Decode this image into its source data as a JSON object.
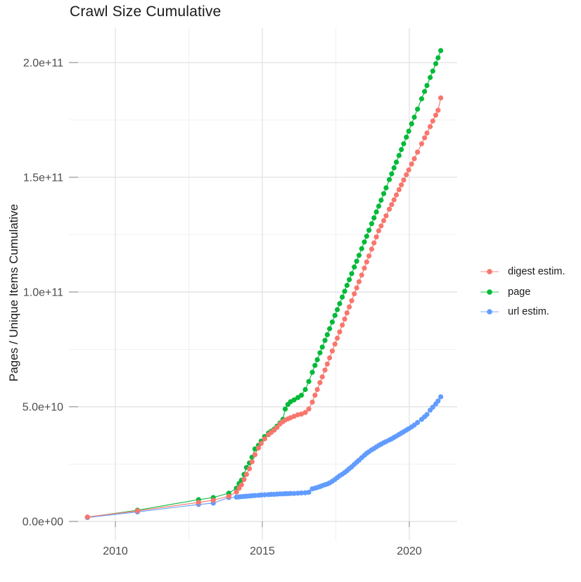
{
  "title": "Crawl Size Cumulative",
  "axes": {
    "y_label": "Pages / Unique Items Cumulative",
    "x_tick_labels": [
      "2010",
      "2015",
      "2020"
    ],
    "y_tick_labels": [
      "0.0e+00",
      "5.0e+10",
      "1.0e+11",
      "1.5e+11",
      "2.0e+11"
    ]
  },
  "legend": {
    "position": "right",
    "items": [
      {
        "label": "digest estim.",
        "color": "#F8766D"
      },
      {
        "label": "page",
        "color": "#00BA38"
      },
      {
        "label": "url estim.",
        "color": "#619CFF"
      }
    ]
  },
  "colors": {
    "digest": "#F8766D",
    "page": "#00BA38",
    "url": "#619CFF",
    "grid_major": "#e2e2e2",
    "grid_minor": "#efefef",
    "tick_text": "#4d4d4d",
    "title_text": "#1a1a1a",
    "background": "#ffffff"
  },
  "chart_data": {
    "type": "scatter",
    "title": "Crawl Size Cumulative",
    "xlabel": "",
    "ylabel": "Pages / Unique Items Cumulative",
    "xlim": [
      2008.42,
      2021.63
    ],
    "ylim": [
      -8300000000.0,
      215000000000.0
    ],
    "grid": true,
    "legend_position": "right",
    "x_ticks": {
      "values": [
        2010,
        2015,
        2020
      ],
      "labels": [
        "2010",
        "2015",
        "2020"
      ],
      "minor": [
        2012.5,
        2017.5
      ]
    },
    "y_ticks": {
      "values": [
        0,
        50000000000.0,
        100000000000.0,
        150000000000.0,
        200000000000.0
      ],
      "labels": [
        "0.0e+00",
        "5.0e+10",
        "1.0e+11",
        "1.5e+11",
        "2.0e+11"
      ],
      "minor": [
        25000000000.0,
        75000000000.0,
        125000000000.0,
        175000000000.0
      ]
    },
    "draw_order": [
      1,
      2,
      0
    ],
    "series": [
      {
        "name": "digest estim.",
        "color": "#F8766D",
        "points": [
          [
            2009.05,
            1900000000.0
          ],
          [
            2010.75,
            4600000000.0
          ],
          [
            2012.83,
            8300000000.0
          ],
          [
            2013.33,
            9200000000.0
          ],
          [
            2013.86,
            11000000000.0
          ],
          [
            2014.12,
            12800000000.0
          ],
          [
            2014.21,
            14500000000.0
          ],
          [
            2014.29,
            16000000000.0
          ],
          [
            2014.38,
            18300000000.0
          ],
          [
            2014.46,
            20500000000.0
          ],
          [
            2014.56,
            23000000000.0
          ],
          [
            2014.65,
            26000000000.0
          ],
          [
            2014.75,
            29100000000.0
          ],
          [
            2014.87,
            32000000000.0
          ],
          [
            2014.96,
            34000000000.0
          ],
          [
            2015.08,
            36000000000.0
          ],
          [
            2015.21,
            37800000000.0
          ],
          [
            2015.3,
            38800000000.0
          ],
          [
            2015.4,
            39800000000.0
          ],
          [
            2015.5,
            41000000000.0
          ],
          [
            2015.6,
            42500000000.0
          ],
          [
            2015.7,
            43500000000.0
          ],
          [
            2015.78,
            44200000000.0
          ],
          [
            2015.87,
            44700000000.0
          ],
          [
            2015.96,
            45200000000.0
          ],
          [
            2016.08,
            45800000000.0
          ],
          [
            2016.21,
            46500000000.0
          ],
          [
            2016.33,
            46800000000.0
          ],
          [
            2016.46,
            47500000000.0
          ],
          [
            2016.58,
            49000000000.0
          ],
          [
            2016.7,
            52000000000.0
          ],
          [
            2016.79,
            55000000000.0
          ],
          [
            2016.87,
            57500000000.0
          ],
          [
            2016.96,
            60500000000.0
          ],
          [
            2017.04,
            63000000000.0
          ],
          [
            2017.13,
            66000000000.0
          ],
          [
            2017.21,
            68600000000.0
          ],
          [
            2017.29,
            71300000000.0
          ],
          [
            2017.38,
            74300000000.0
          ],
          [
            2017.47,
            77300000000.0
          ],
          [
            2017.55,
            79900000000.0
          ],
          [
            2017.63,
            82600000000.0
          ],
          [
            2017.72,
            85600000000.0
          ],
          [
            2017.8,
            88200000000.0
          ],
          [
            2017.88,
            90900000000.0
          ],
          [
            2017.96,
            93500000000.0
          ],
          [
            2018.04,
            96200000000.0
          ],
          [
            2018.13,
            99200000000.0
          ],
          [
            2018.21,
            101800000000.0
          ],
          [
            2018.29,
            104500000000.0
          ],
          [
            2018.38,
            107400000000.0
          ],
          [
            2018.47,
            110400000000.0
          ],
          [
            2018.55,
            113100000000.0
          ],
          [
            2018.63,
            115700000000.0
          ],
          [
            2018.72,
            118700000000.0
          ],
          [
            2018.8,
            121400000000.0
          ],
          [
            2018.88,
            124000000000.0
          ],
          [
            2018.96,
            126700000000.0
          ],
          [
            2019.04,
            128800000000.0
          ],
          [
            2019.13,
            131100000000.0
          ],
          [
            2019.21,
            133200000000.0
          ],
          [
            2019.32,
            136100000000.0
          ],
          [
            2019.4,
            138100000000.0
          ],
          [
            2019.48,
            140200000000.0
          ],
          [
            2019.56,
            142300000000.0
          ],
          [
            2019.65,
            144600000000.0
          ],
          [
            2019.73,
            146700000000.0
          ],
          [
            2019.81,
            148800000000.0
          ],
          [
            2019.9,
            151100000000.0
          ],
          [
            2019.98,
            153200000000.0
          ],
          [
            2020.08,
            155800000000.0
          ],
          [
            2020.17,
            158100000000.0
          ],
          [
            2020.28,
            161000000000.0
          ],
          [
            2020.42,
            164600000000.0
          ],
          [
            2020.52,
            167200000000.0
          ],
          [
            2020.6,
            169300000000.0
          ],
          [
            2020.71,
            172100000000.0
          ],
          [
            2020.8,
            174500000000.0
          ],
          [
            2020.9,
            177100000000.0
          ],
          [
            2020.98,
            179200000000.0
          ],
          [
            2021.07,
            184600000000.0
          ]
        ]
      },
      {
        "name": "page",
        "color": "#00BA38",
        "points": [
          [
            2009.05,
            1850000000.0
          ],
          [
            2010.75,
            4900000000.0
          ],
          [
            2012.83,
            9500000000.0
          ],
          [
            2013.33,
            10400000000.0
          ],
          [
            2013.86,
            12300000000.0
          ],
          [
            2014.12,
            14500000000.0
          ],
          [
            2014.21,
            16500000000.0
          ],
          [
            2014.29,
            18000000000.0
          ],
          [
            2014.38,
            20500000000.0
          ],
          [
            2014.46,
            23500000000.0
          ],
          [
            2014.56,
            25500000000.0
          ],
          [
            2014.65,
            28000000000.0
          ],
          [
            2014.75,
            31600000000.0
          ],
          [
            2014.87,
            33200000000.0
          ],
          [
            2014.96,
            35000000000.0
          ],
          [
            2015.08,
            37000000000.0
          ],
          [
            2015.21,
            38500000000.0
          ],
          [
            2015.3,
            39300000000.0
          ],
          [
            2015.4,
            40200000000.0
          ],
          [
            2015.5,
            41500000000.0
          ],
          [
            2015.6,
            42900000000.0
          ],
          [
            2015.7,
            44500000000.0
          ],
          [
            2015.78,
            49000000000.0
          ],
          [
            2015.87,
            51000000000.0
          ],
          [
            2015.96,
            52200000000.0
          ],
          [
            2016.08,
            53000000000.0
          ],
          [
            2016.21,
            54000000000.0
          ],
          [
            2016.33,
            55000000000.0
          ],
          [
            2016.46,
            57500000000.0
          ],
          [
            2016.58,
            61000000000.0
          ],
          [
            2016.7,
            65000000000.0
          ],
          [
            2016.79,
            68000000000.0
          ],
          [
            2016.87,
            70500000000.0
          ],
          [
            2016.96,
            73500000000.0
          ],
          [
            2017.04,
            76000000000.0
          ],
          [
            2017.13,
            78900000000.0
          ],
          [
            2017.21,
            81400000000.0
          ],
          [
            2017.29,
            84000000000.0
          ],
          [
            2017.38,
            86900000000.0
          ],
          [
            2017.47,
            89800000000.0
          ],
          [
            2017.55,
            92300000000.0
          ],
          [
            2017.63,
            94900000000.0
          ],
          [
            2017.72,
            97800000000.0
          ],
          [
            2017.8,
            100300000000.0
          ],
          [
            2017.88,
            102900000000.0
          ],
          [
            2017.96,
            105400000000.0
          ],
          [
            2018.04,
            108000000000.0
          ],
          [
            2018.13,
            110900000000.0
          ],
          [
            2018.21,
            113400000000.0
          ],
          [
            2018.29,
            116000000000.0
          ],
          [
            2018.38,
            118900000000.0
          ],
          [
            2018.47,
            121800000000.0
          ],
          [
            2018.55,
            124300000000.0
          ],
          [
            2018.63,
            126900000000.0
          ],
          [
            2018.72,
            129800000000.0
          ],
          [
            2018.8,
            132300000000.0
          ],
          [
            2018.88,
            134900000000.0
          ],
          [
            2018.96,
            137400000000.0
          ],
          [
            2019.04,
            140000000000.0
          ],
          [
            2019.13,
            142900000000.0
          ],
          [
            2019.21,
            145400000000.0
          ],
          [
            2019.32,
            149000000000.0
          ],
          [
            2019.4,
            151500000000.0
          ],
          [
            2019.48,
            154100000000.0
          ],
          [
            2019.56,
            156600000000.0
          ],
          [
            2019.65,
            159500000000.0
          ],
          [
            2019.73,
            162100000000.0
          ],
          [
            2019.81,
            164600000000.0
          ],
          [
            2019.9,
            167500000000.0
          ],
          [
            2019.98,
            170100000000.0
          ],
          [
            2020.08,
            173300000000.0
          ],
          [
            2020.17,
            176200000000.0
          ],
          [
            2020.28,
            179700000000.0
          ],
          [
            2020.42,
            184200000000.0
          ],
          [
            2020.52,
            187400000000.0
          ],
          [
            2020.6,
            190000000000.0
          ],
          [
            2020.71,
            193500000000.0
          ],
          [
            2020.8,
            196300000000.0
          ],
          [
            2020.9,
            199500000000.0
          ],
          [
            2020.98,
            202100000000.0
          ],
          [
            2021.07,
            205200000000.0
          ]
        ]
      },
      {
        "name": "url estim.",
        "color": "#619CFF",
        "points": [
          [
            2009.05,
            1700000000.0
          ],
          [
            2010.75,
            4150000000.0
          ],
          [
            2012.83,
            7400000000.0
          ],
          [
            2013.33,
            8000000000.0
          ],
          [
            2013.86,
            10400000000.0
          ],
          [
            2014.12,
            10600000000.0
          ],
          [
            2014.21,
            10700000000.0
          ],
          [
            2014.29,
            10800000000.0
          ],
          [
            2014.38,
            10900000000.0
          ],
          [
            2014.46,
            11000000000.0
          ],
          [
            2014.56,
            11100000000.0
          ],
          [
            2014.65,
            11200000000.0
          ],
          [
            2014.75,
            11300000000.0
          ],
          [
            2014.87,
            11400000000.0
          ],
          [
            2014.96,
            11500000000.0
          ],
          [
            2015.08,
            11600000000.0
          ],
          [
            2015.21,
            11700000000.0
          ],
          [
            2015.3,
            11800000000.0
          ],
          [
            2015.4,
            11800000000.0
          ],
          [
            2015.5,
            11900000000.0
          ],
          [
            2015.6,
            12000000000.0
          ],
          [
            2015.7,
            12000000000.0
          ],
          [
            2015.78,
            12100000000.0
          ],
          [
            2015.87,
            12100000000.0
          ],
          [
            2015.96,
            12200000000.0
          ],
          [
            2016.08,
            12200000000.0
          ],
          [
            2016.21,
            12300000000.0
          ],
          [
            2016.33,
            12400000000.0
          ],
          [
            2016.46,
            12500000000.0
          ],
          [
            2016.58,
            12700000000.0
          ],
          [
            2016.7,
            14200000000.0
          ],
          [
            2016.79,
            14500000000.0
          ],
          [
            2016.87,
            14800000000.0
          ],
          [
            2016.96,
            15200000000.0
          ],
          [
            2017.04,
            15600000000.0
          ],
          [
            2017.13,
            16000000000.0
          ],
          [
            2017.21,
            16300000000.0
          ],
          [
            2017.29,
            16800000000.0
          ],
          [
            2017.38,
            17500000000.0
          ],
          [
            2017.47,
            18300000000.0
          ],
          [
            2017.55,
            19100000000.0
          ],
          [
            2017.63,
            19900000000.0
          ],
          [
            2017.72,
            20600000000.0
          ],
          [
            2017.8,
            21300000000.0
          ],
          [
            2017.88,
            22100000000.0
          ],
          [
            2017.96,
            23000000000.0
          ],
          [
            2018.04,
            23800000000.0
          ],
          [
            2018.13,
            24900000000.0
          ],
          [
            2018.21,
            25800000000.0
          ],
          [
            2018.29,
            26700000000.0
          ],
          [
            2018.38,
            27800000000.0
          ],
          [
            2018.47,
            28800000000.0
          ],
          [
            2018.55,
            29700000000.0
          ],
          [
            2018.63,
            30400000000.0
          ],
          [
            2018.72,
            31200000000.0
          ],
          [
            2018.8,
            31800000000.0
          ],
          [
            2018.88,
            32500000000.0
          ],
          [
            2018.96,
            33100000000.0
          ],
          [
            2019.04,
            33700000000.0
          ],
          [
            2019.13,
            34300000000.0
          ],
          [
            2019.21,
            34800000000.0
          ],
          [
            2019.32,
            35500000000.0
          ],
          [
            2019.4,
            36000000000.0
          ],
          [
            2019.48,
            36600000000.0
          ],
          [
            2019.56,
            37200000000.0
          ],
          [
            2019.65,
            37900000000.0
          ],
          [
            2019.73,
            38500000000.0
          ],
          [
            2019.81,
            39100000000.0
          ],
          [
            2019.9,
            39800000000.0
          ],
          [
            2019.98,
            40400000000.0
          ],
          [
            2020.08,
            41200000000.0
          ],
          [
            2020.17,
            42000000000.0
          ],
          [
            2020.28,
            43100000000.0
          ],
          [
            2020.42,
            44500000000.0
          ],
          [
            2020.52,
            45600000000.0
          ],
          [
            2020.6,
            46600000000.0
          ],
          [
            2020.71,
            48500000000.0
          ],
          [
            2020.8,
            49800000000.0
          ],
          [
            2020.9,
            51200000000.0
          ],
          [
            2020.98,
            52500000000.0
          ],
          [
            2021.07,
            54300000000.0
          ]
        ]
      }
    ]
  }
}
